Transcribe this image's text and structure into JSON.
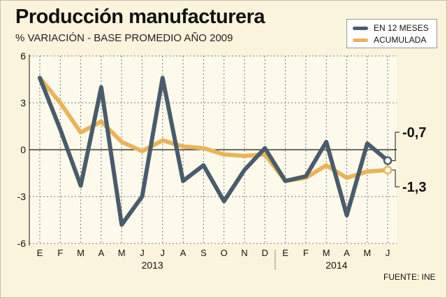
{
  "colors": {
    "primary": "#4a5c6b",
    "accent": "#eab35a",
    "background": "#fbf4dc",
    "zero_line": "#111111",
    "grid": "#777777"
  },
  "chart_data": {
    "type": "line",
    "title": "Producción manufacturera",
    "subtitle": "% VARIACIÓN - BASE PROMEDIO AÑO 2009",
    "categories": [
      "E",
      "F",
      "M",
      "A",
      "M",
      "J",
      "J",
      "A",
      "S",
      "O",
      "N",
      "D",
      "E",
      "F",
      "M",
      "A",
      "M",
      "J"
    ],
    "year_labels": [
      "2013",
      "2014"
    ],
    "ylim": [
      -6,
      6
    ],
    "yticks": [
      6,
      3,
      0,
      -3,
      -6
    ],
    "series": [
      {
        "name": "EN 12 MESES",
        "color": "#4a5c6b",
        "values": [
          4.6,
          1.3,
          -2.3,
          4.0,
          -4.8,
          -3.0,
          4.6,
          -2.0,
          -1.0,
          -3.3,
          -1.3,
          0.1,
          -2.0,
          -1.7,
          0.5,
          -4.2,
          0.4,
          -0.7
        ]
      },
      {
        "name": "ACUMULADA",
        "color": "#eab35a",
        "values": [
          4.6,
          3.0,
          1.1,
          1.8,
          0.5,
          -0.1,
          0.6,
          0.2,
          0.1,
          -0.3,
          -0.4,
          -0.3,
          -2.0,
          -1.8,
          -1.0,
          -1.8,
          -1.4,
          -1.3
        ]
      }
    ],
    "end_labels": [
      "-0,7",
      "-1,3"
    ],
    "source": "FUENTE: INE"
  }
}
